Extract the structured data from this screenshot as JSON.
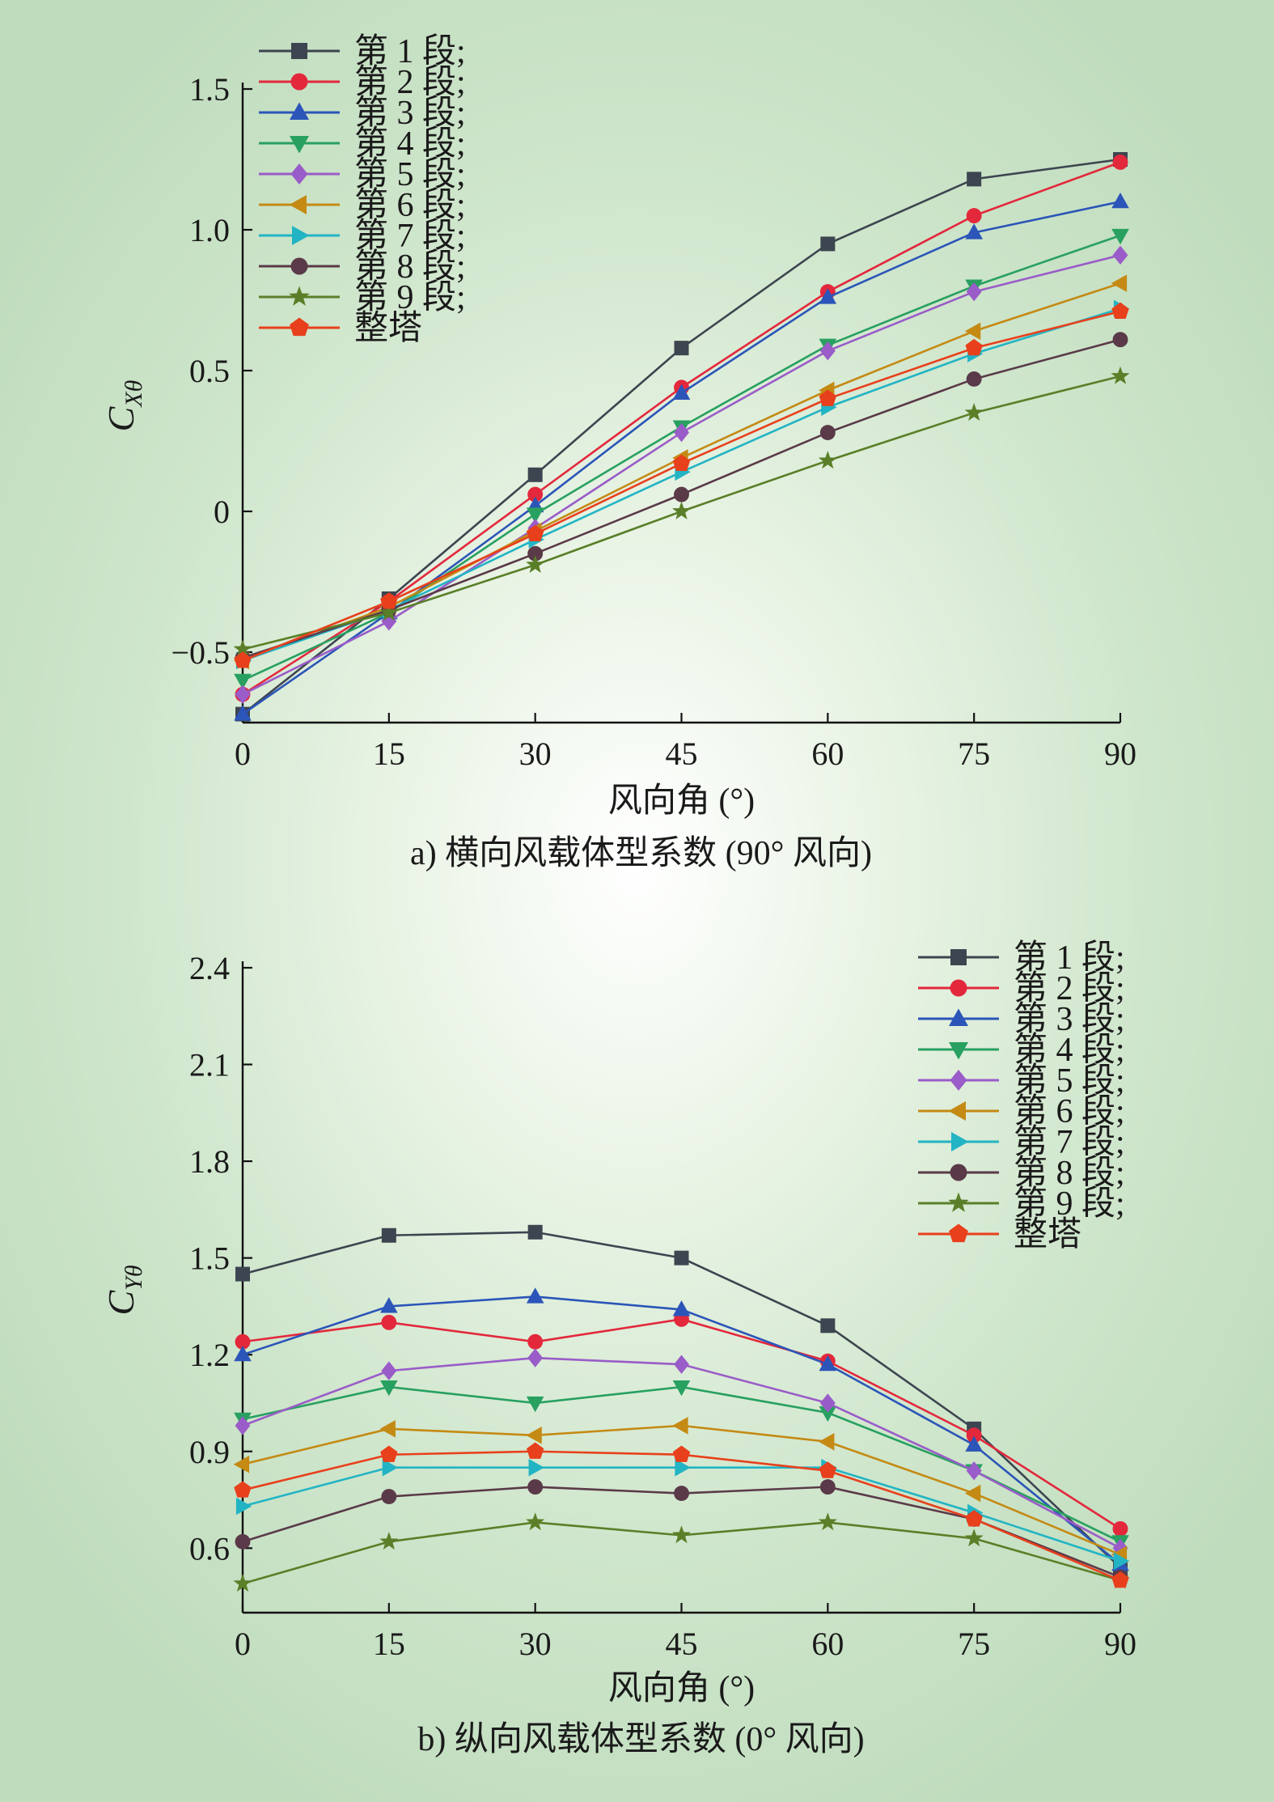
{
  "chart_data": [
    {
      "type": "line",
      "panel": "a",
      "caption": "a) 横向风载体型系数 (90° 风向)",
      "xlabel": "风向角 (°)",
      "ylabel": {
        "main": "C",
        "sub": "Xθ"
      },
      "xlim": [
        0,
        90
      ],
      "ylim": [
        -0.75,
        1.5
      ],
      "xticks": [
        0,
        15,
        30,
        45,
        60,
        75,
        90
      ],
      "yticks": [
        -0.5,
        0,
        0.5,
        1.0,
        1.5
      ],
      "ytick_labels": [
        "−0.5",
        "0",
        "0.5",
        "1.0",
        "1.5"
      ],
      "legend_position": "top-left",
      "x": [
        0,
        15,
        30,
        45,
        60,
        75,
        90
      ],
      "series": [
        {
          "name": "第 1 段;",
          "color": "#3d4550",
          "marker": "square",
          "values": [
            -0.72,
            -0.31,
            0.13,
            0.58,
            0.95,
            1.18,
            1.25
          ]
        },
        {
          "name": "第 2 段;",
          "color": "#e3283c",
          "marker": "circle",
          "values": [
            -0.65,
            -0.32,
            0.06,
            0.44,
            0.78,
            1.05,
            1.24
          ]
        },
        {
          "name": "第 3 段;",
          "color": "#2b55b8",
          "marker": "triangle-up",
          "values": [
            -0.72,
            -0.36,
            0.02,
            0.42,
            0.76,
            0.99,
            1.1
          ]
        },
        {
          "name": "第 4 段;",
          "color": "#28a060",
          "marker": "triangle-down",
          "values": [
            -0.6,
            -0.36,
            -0.01,
            0.3,
            0.59,
            0.8,
            0.98
          ]
        },
        {
          "name": "第 5 段;",
          "color": "#9a5cc8",
          "marker": "diamond",
          "values": [
            -0.65,
            -0.39,
            -0.06,
            0.28,
            0.57,
            0.78,
            0.91
          ]
        },
        {
          "name": "第 6 段;",
          "color": "#c48a14",
          "marker": "triangle-left",
          "values": [
            -0.53,
            -0.34,
            -0.07,
            0.19,
            0.43,
            0.64,
            0.81
          ]
        },
        {
          "name": "第 7 段;",
          "color": "#22b4c4",
          "marker": "triangle-right",
          "values": [
            -0.53,
            -0.35,
            -0.1,
            0.14,
            0.37,
            0.56,
            0.72
          ]
        },
        {
          "name": "第 8 段;",
          "color": "#5a3a48",
          "marker": "circle",
          "values": [
            -0.52,
            -0.35,
            -0.15,
            0.06,
            0.28,
            0.47,
            0.61
          ]
        },
        {
          "name": "第 9 段;",
          "color": "#5a7f28",
          "marker": "star",
          "values": [
            -0.49,
            -0.36,
            -0.19,
            0.0,
            0.18,
            0.35,
            0.48
          ]
        },
        {
          "name": "整塔",
          "color": "#e8401c",
          "marker": "pentagon",
          "values": [
            -0.53,
            -0.32,
            -0.08,
            0.17,
            0.4,
            0.58,
            0.71
          ]
        }
      ]
    },
    {
      "type": "line",
      "panel": "b",
      "caption": "b) 纵向风载体型系数 (0° 风向)",
      "xlabel": "风向角 (°)",
      "ylabel": {
        "main": "C",
        "sub": "Yθ"
      },
      "xlim": [
        0,
        90
      ],
      "ylim": [
        0.4,
        2.4
      ],
      "xticks": [
        0,
        15,
        30,
        45,
        60,
        75,
        90
      ],
      "yticks": [
        0.6,
        0.9,
        1.2,
        1.5,
        1.8,
        2.1,
        2.4
      ],
      "ytick_labels": [
        "0.6",
        "0.9",
        "1.2",
        "1.5",
        "1.8",
        "2.1",
        "2.4"
      ],
      "legend_position": "top-right",
      "x": [
        0,
        15,
        30,
        45,
        60,
        75,
        90
      ],
      "series": [
        {
          "name": "第 1 段;",
          "color": "#3d4550",
          "marker": "square",
          "values": [
            1.45,
            1.57,
            1.58,
            1.5,
            1.29,
            0.97,
            0.54
          ]
        },
        {
          "name": "第 2 段;",
          "color": "#e3283c",
          "marker": "circle",
          "values": [
            1.24,
            1.3,
            1.24,
            1.31,
            1.18,
            0.95,
            0.66
          ]
        },
        {
          "name": "第 3 段;",
          "color": "#2b55b8",
          "marker": "triangle-up",
          "values": [
            1.2,
            1.35,
            1.38,
            1.34,
            1.17,
            0.92,
            0.55
          ]
        },
        {
          "name": "第 4 段;",
          "color": "#28a060",
          "marker": "triangle-down",
          "values": [
            1.0,
            1.1,
            1.05,
            1.1,
            1.02,
            0.84,
            0.62
          ]
        },
        {
          "name": "第 5 段;",
          "color": "#9a5cc8",
          "marker": "diamond",
          "values": [
            0.98,
            1.15,
            1.19,
            1.17,
            1.05,
            0.84,
            0.6
          ]
        },
        {
          "name": "第 6 段;",
          "color": "#c48a14",
          "marker": "triangle-left",
          "values": [
            0.86,
            0.97,
            0.95,
            0.98,
            0.93,
            0.77,
            0.58
          ]
        },
        {
          "name": "第 7 段;",
          "color": "#22b4c4",
          "marker": "triangle-right",
          "values": [
            0.73,
            0.85,
            0.85,
            0.85,
            0.85,
            0.71,
            0.56
          ]
        },
        {
          "name": "第 8 段;",
          "color": "#5a3a48",
          "marker": "circle",
          "values": [
            0.62,
            0.76,
            0.79,
            0.77,
            0.79,
            0.69,
            0.51
          ]
        },
        {
          "name": "第 9 段;",
          "color": "#5a7f28",
          "marker": "star",
          "values": [
            0.49,
            0.62,
            0.68,
            0.64,
            0.68,
            0.63,
            0.5
          ]
        },
        {
          "name": "整塔",
          "color": "#e8401c",
          "marker": "pentagon",
          "values": [
            0.78,
            0.89,
            0.9,
            0.89,
            0.84,
            0.69,
            0.5
          ]
        }
      ]
    }
  ]
}
